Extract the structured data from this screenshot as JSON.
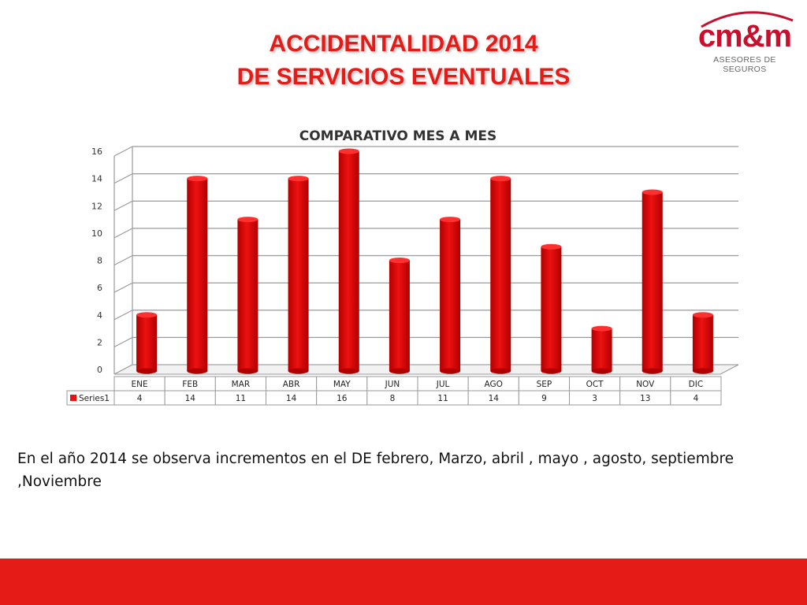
{
  "slide": {
    "title_line1": "ACCIDENTALIDAD 2014",
    "title_line2": "DE SERVICIOS EVENTUALES",
    "note": "En el año 2014 se observa  incrementos en  el DE febrero, Marzo,   abril , mayo , agosto, septiembre ,Noviembre"
  },
  "logo": {
    "text": "CM&M",
    "tagline": "ASESORES DE SEGUROS"
  },
  "colors": {
    "accent": "#e41b17",
    "bar": "#ee1111",
    "bar_dark": "#b00000",
    "grid": "#9a9a9a"
  },
  "chart_data": {
    "type": "bar",
    "title": "COMPARATIVO MES A MES",
    "categories": [
      "ENE",
      "FEB",
      "MAR",
      "ABR",
      "MAY",
      "JUN",
      "JUL",
      "AGO",
      "SEP",
      "OCT",
      "NOV",
      "DIC"
    ],
    "series": [
      {
        "name": "Series1",
        "values": [
          4,
          14,
          11,
          14,
          16,
          8,
          11,
          14,
          9,
          3,
          13,
          4
        ]
      }
    ],
    "ylim": [
      0,
      16
    ],
    "yticks": [
      0,
      2,
      4,
      6,
      8,
      10,
      12,
      14,
      16
    ],
    "grid": true,
    "data_table": true,
    "legend": "data-table"
  }
}
